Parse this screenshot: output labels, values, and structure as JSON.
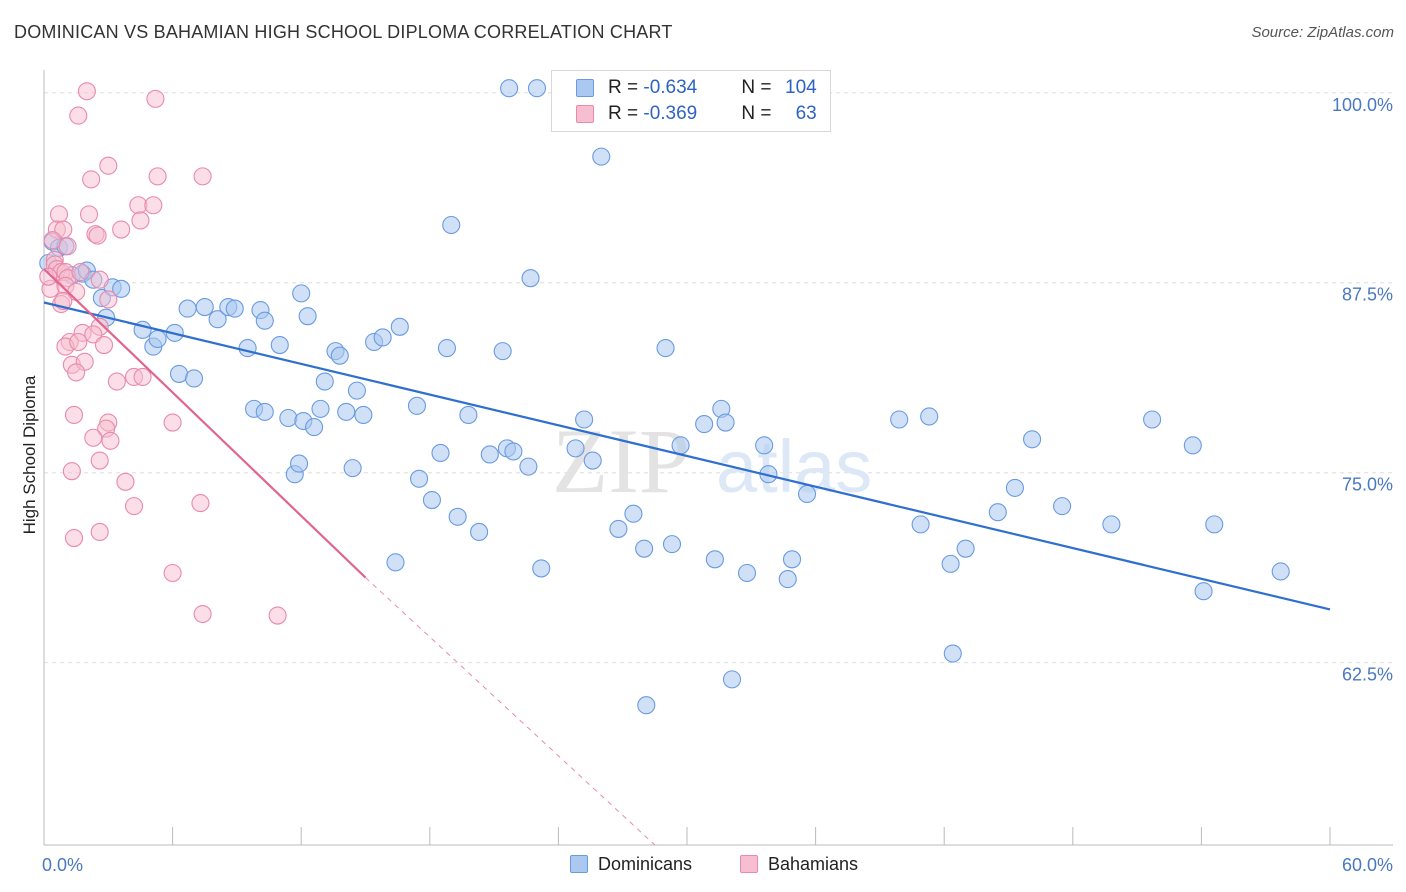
{
  "header": {
    "title": "DOMINICAN VS BAHAMIAN HIGH SCHOOL DIPLOMA CORRELATION CHART",
    "source": "Source: ZipAtlas.com"
  },
  "legend": {
    "rows": [
      {
        "r_label": "R = ",
        "r_value": "-0.634",
        "n_label": "N = ",
        "n_value": "104"
      },
      {
        "r_label": "R = ",
        "r_value": "-0.369",
        "n_label": "N = ",
        "n_value": "63"
      }
    ]
  },
  "watermark": {
    "zip": "ZIP",
    "atlas": "atlas"
  },
  "colors": {
    "blue_fill": "#aac8f0",
    "blue_stroke": "#6a9be0",
    "blue_line": "#2f6fcf",
    "pink_fill": "#f7bdd0",
    "pink_stroke": "#e98aaa",
    "pink_line": "#e0668f",
    "tick_text": "#4a78c2",
    "grid": "#dddddd"
  },
  "chart_data": {
    "type": "scatter",
    "title": "DOMINICAN VS BAHAMIAN HIGH SCHOOL DIPLOMA CORRELATION CHART",
    "xlabel": "",
    "ylabel": "High School Diploma",
    "xlim": [
      0,
      60
    ],
    "ylim": [
      50.5,
      101.5
    ],
    "x_tick_labels": [
      "0.0%",
      "60.0%"
    ],
    "y_ticks": [
      62.5,
      75.0,
      87.5,
      100.0
    ],
    "y_tick_labels": [
      "62.5%",
      "75.0%",
      "87.5%",
      "100.0%"
    ],
    "grid": true,
    "legend_position": "bottom",
    "series": [
      {
        "name": "Dominicans",
        "color": "#6a9be0",
        "r": -0.634,
        "n": 104,
        "trend": {
          "x0": 0,
          "y0": 86.2,
          "x1": 60,
          "y1": 66.0
        },
        "points": [
          [
            0.2,
            88.8
          ],
          [
            0.4,
            90.2
          ],
          [
            0.7,
            89.8
          ],
          [
            1.0,
            89.9
          ],
          [
            1.3,
            88.0
          ],
          [
            1.8,
            88.1
          ],
          [
            2.0,
            88.3
          ],
          [
            2.3,
            87.7
          ],
          [
            2.7,
            86.5
          ],
          [
            3.2,
            87.2
          ],
          [
            3.6,
            87.1
          ],
          [
            2.9,
            85.2
          ],
          [
            4.6,
            84.4
          ],
          [
            5.1,
            83.3
          ],
          [
            5.3,
            83.8
          ],
          [
            6.7,
            85.8
          ],
          [
            6.1,
            84.2
          ],
          [
            7.5,
            85.9
          ],
          [
            8.1,
            85.1
          ],
          [
            8.6,
            85.9
          ],
          [
            8.9,
            85.8
          ],
          [
            9.5,
            83.2
          ],
          [
            10.1,
            85.7
          ],
          [
            10.3,
            85.0
          ],
          [
            11.0,
            83.4
          ],
          [
            12.0,
            86.8
          ],
          [
            12.3,
            85.3
          ],
          [
            6.3,
            81.5
          ],
          [
            7.0,
            81.2
          ],
          [
            9.8,
            79.2
          ],
          [
            10.3,
            79.0
          ],
          [
            11.4,
            78.6
          ],
          [
            12.1,
            78.4
          ],
          [
            11.7,
            74.9
          ],
          [
            11.9,
            75.6
          ],
          [
            12.6,
            78.0
          ],
          [
            12.9,
            79.2
          ],
          [
            13.1,
            81.0
          ],
          [
            13.6,
            83.0
          ],
          [
            13.8,
            82.7
          ],
          [
            14.1,
            79.0
          ],
          [
            14.4,
            75.3
          ],
          [
            14.6,
            80.4
          ],
          [
            14.9,
            78.8
          ],
          [
            15.4,
            83.6
          ],
          [
            15.8,
            83.9
          ],
          [
            16.6,
            84.6
          ],
          [
            17.4,
            79.4
          ],
          [
            16.4,
            69.1
          ],
          [
            17.5,
            74.6
          ],
          [
            18.1,
            73.2
          ],
          [
            18.5,
            76.3
          ],
          [
            18.8,
            83.2
          ],
          [
            19.3,
            72.1
          ],
          [
            19.8,
            78.8
          ],
          [
            20.3,
            71.1
          ],
          [
            20.8,
            76.2
          ],
          [
            21.4,
            83.0
          ],
          [
            21.6,
            76.6
          ],
          [
            21.9,
            76.4
          ],
          [
            22.6,
            75.4
          ],
          [
            22.7,
            87.8
          ],
          [
            19.0,
            91.3
          ],
          [
            21.7,
            100.3
          ],
          [
            23.0,
            100.3
          ],
          [
            23.2,
            68.7
          ],
          [
            24.8,
            76.6
          ],
          [
            25.2,
            78.5
          ],
          [
            25.6,
            75.8
          ],
          [
            26.0,
            95.8
          ],
          [
            26.8,
            71.3
          ],
          [
            28.0,
            70.0
          ],
          [
            29.0,
            83.2
          ],
          [
            29.3,
            70.3
          ],
          [
            29.7,
            76.8
          ],
          [
            30.8,
            78.2
          ],
          [
            31.3,
            69.3
          ],
          [
            31.6,
            79.2
          ],
          [
            31.8,
            78.3
          ],
          [
            32.8,
            68.4
          ],
          [
            33.6,
            76.8
          ],
          [
            33.8,
            74.9
          ],
          [
            34.9,
            69.3
          ],
          [
            34.7,
            68.0
          ],
          [
            35.6,
            73.6
          ],
          [
            39.9,
            78.5
          ],
          [
            40.9,
            71.6
          ],
          [
            41.3,
            78.7
          ],
          [
            42.3,
            69.0
          ],
          [
            43.0,
            70.0
          ],
          [
            42.4,
            63.1
          ],
          [
            44.5,
            72.4
          ],
          [
            45.3,
            74.0
          ],
          [
            46.1,
            77.2
          ],
          [
            47.5,
            72.8
          ],
          [
            49.8,
            71.6
          ],
          [
            51.7,
            78.5
          ],
          [
            53.6,
            76.8
          ],
          [
            54.1,
            67.2
          ],
          [
            54.6,
            71.6
          ],
          [
            57.7,
            68.5
          ],
          [
            28.1,
            59.7
          ],
          [
            32.1,
            61.4
          ],
          [
            27.5,
            72.3
          ]
        ]
      },
      {
        "name": "Bahamians",
        "color": "#e98aaa",
        "r": -0.369,
        "n": 63,
        "trend": {
          "x0": 0,
          "y0": 88.4,
          "x1": 15,
          "y1": 68.1
        },
        "trend_ext": {
          "x0": 15,
          "y0": 68.1,
          "x1": 28.5,
          "y1": 50.5
        },
        "points": [
          [
            2.0,
            100.1
          ],
          [
            5.2,
            99.6
          ],
          [
            1.6,
            98.5
          ],
          [
            3.0,
            95.2
          ],
          [
            2.2,
            94.3
          ],
          [
            5.3,
            94.5
          ],
          [
            7.4,
            94.5
          ],
          [
            4.4,
            92.6
          ],
          [
            5.1,
            92.6
          ],
          [
            0.7,
            92.0
          ],
          [
            2.1,
            92.0
          ],
          [
            4.5,
            91.6
          ],
          [
            0.6,
            91.0
          ],
          [
            0.9,
            91.0
          ],
          [
            2.4,
            90.7
          ],
          [
            2.5,
            90.6
          ],
          [
            3.6,
            91.0
          ],
          [
            0.4,
            90.3
          ],
          [
            1.1,
            89.9
          ],
          [
            0.5,
            89.0
          ],
          [
            0.5,
            88.7
          ],
          [
            0.6,
            88.4
          ],
          [
            0.8,
            88.2
          ],
          [
            1.0,
            88.2
          ],
          [
            1.1,
            87.8
          ],
          [
            2.6,
            87.7
          ],
          [
            0.3,
            87.1
          ],
          [
            1.0,
            87.3
          ],
          [
            1.5,
            86.9
          ],
          [
            0.8,
            86.1
          ],
          [
            3.0,
            86.4
          ],
          [
            2.6,
            84.6
          ],
          [
            1.8,
            84.2
          ],
          [
            2.3,
            84.1
          ],
          [
            1.2,
            83.6
          ],
          [
            1.0,
            83.3
          ],
          [
            1.6,
            83.6
          ],
          [
            2.8,
            83.4
          ],
          [
            1.3,
            82.1
          ],
          [
            1.9,
            82.3
          ],
          [
            1.5,
            81.6
          ],
          [
            4.2,
            81.3
          ],
          [
            3.4,
            81.0
          ],
          [
            1.4,
            78.8
          ],
          [
            3.0,
            78.3
          ],
          [
            6.0,
            78.3
          ],
          [
            2.9,
            77.9
          ],
          [
            2.3,
            77.3
          ],
          [
            3.1,
            77.1
          ],
          [
            1.3,
            75.1
          ],
          [
            3.8,
            74.4
          ],
          [
            4.2,
            72.8
          ],
          [
            7.3,
            73.0
          ],
          [
            2.6,
            71.1
          ],
          [
            1.4,
            70.7
          ],
          [
            6.0,
            68.4
          ],
          [
            7.4,
            65.7
          ],
          [
            10.9,
            65.6
          ],
          [
            4.6,
            81.3
          ],
          [
            2.6,
            75.8
          ],
          [
            0.2,
            87.9
          ],
          [
            1.7,
            88.2
          ],
          [
            0.9,
            86.3
          ]
        ]
      }
    ]
  }
}
